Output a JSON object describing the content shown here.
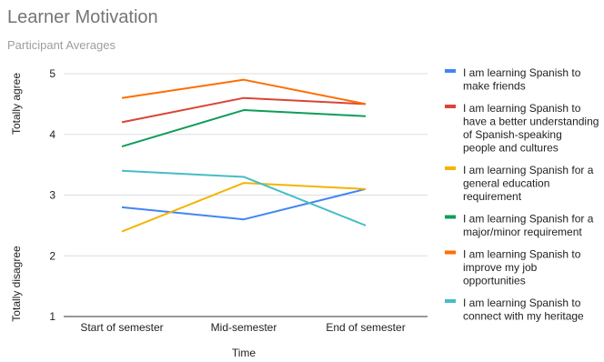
{
  "chart_data": {
    "type": "line",
    "title": "Learner Motivation",
    "subtitle": "Participant Averages",
    "xlabel": "Time",
    "ylabel_top": "Totally agree",
    "ylabel_bottom": "Totally disagree",
    "categories": [
      "Start of semester",
      "Mid-semester",
      "End of semester"
    ],
    "ylim": [
      1,
      5
    ],
    "yticks": [
      1,
      2,
      3,
      4,
      5
    ],
    "grid": true,
    "legend_position": "right",
    "series": [
      {
        "name": "I am learning Spanish to make friends",
        "color": "#4285f4",
        "values": [
          2.8,
          2.6,
          3.1
        ],
        "legend_lines": [
          "I am learning Spanish to",
          "make friends"
        ]
      },
      {
        "name": "I am learning Spanish to have a better understanding of Spanish-speaking people and cultures",
        "color": "#db4437",
        "values": [
          4.2,
          4.6,
          4.5
        ],
        "legend_lines": [
          "I am learning Spanish to",
          "have a better understanding",
          "of Spanish-speaking",
          "people and cultures"
        ]
      },
      {
        "name": "I am learning Spanish for a general education requirement",
        "color": "#f4b400",
        "values": [
          2.4,
          3.2,
          3.1
        ],
        "legend_lines": [
          "I am learning Spanish for a",
          "general education",
          "requirement"
        ]
      },
      {
        "name": "I am learning Spanish for a major/minor requirement",
        "color": "#0f9d58",
        "values": [
          3.8,
          4.4,
          4.3
        ],
        "legend_lines": [
          "I am learning Spanish for a",
          "major/minor requirement"
        ]
      },
      {
        "name": "I am learning Spanish to improve my job opportunities",
        "color": "#ff6d01",
        "values": [
          4.6,
          4.9,
          4.5
        ],
        "legend_lines": [
          "I am learning Spanish to",
          "improve my job",
          "opportunities"
        ]
      },
      {
        "name": "I am learning Spanish to connect with my heritage",
        "color": "#46bdc6",
        "values": [
          3.4,
          3.3,
          2.5
        ],
        "legend_lines": [
          "I am learning Spanish to",
          "connect with my heritage"
        ]
      }
    ]
  }
}
